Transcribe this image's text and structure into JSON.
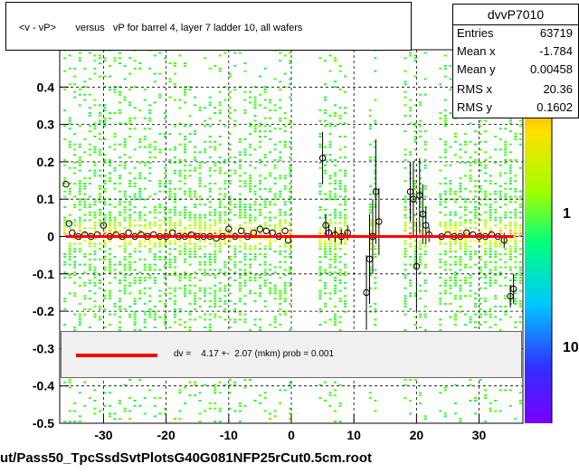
{
  "title": "<v - vP>       versus   vP for barrel 4, layer 7 ladder 10, all wafers",
  "stats": {
    "name": "dvvP7010",
    "rows": [
      {
        "label": "Entries",
        "value": "63719"
      },
      {
        "label": "Mean x",
        "value": "-1.784"
      },
      {
        "label": "Mean y",
        "value": "0.00458"
      },
      {
        "label": "RMS x",
        "value": "20.36"
      },
      {
        "label": "RMS y",
        "value": "0.1602"
      }
    ]
  },
  "legend": {
    "text": "dv =    4.17 +-  2.07 (mkm) prob = 0.001"
  },
  "footer": {
    "filename": "ut/Pass50_TpcSsdSvtPlotsG40G081NFP25rCut0.5cm.root"
  },
  "colors": {
    "fit_line": "#ff0000",
    "markers": "#000000",
    "grid": "#000000"
  },
  "chart_data": {
    "type": "scatter",
    "subtype": "2D histogram (colz) with profile overlay and linear fit",
    "xlim": [
      -37,
      37
    ],
    "ylim": [
      -0.5,
      0.5
    ],
    "y_tick_labels": [
      "-0.5",
      "-0.4",
      "-0.3",
      "-0.2",
      "-0.1",
      "0",
      "0.1",
      "0.2",
      "0.3",
      "0.4"
    ],
    "x_tick_labels": [
      "-30",
      "-20",
      "-10",
      "0",
      "10",
      "20",
      "30"
    ],
    "x_ticks": [
      -30,
      -20,
      -10,
      0,
      10,
      20,
      30
    ],
    "y_ticks": [
      -0.5,
      -0.4,
      -0.3,
      -0.2,
      -0.1,
      0,
      0.1,
      0.2,
      0.3,
      0.4
    ],
    "grid": true,
    "zscale": "log",
    "z_tick_labels": [
      "10",
      "1"
    ],
    "z_ticks": [
      10,
      1
    ],
    "fit_line": {
      "y": 0.0
    },
    "empty_x_ranges": [
      [
        0,
        4
      ],
      [
        9,
        12
      ],
      [
        14,
        18
      ],
      [
        22,
        23
      ]
    ],
    "profile": {
      "x": [
        -36,
        -35.5,
        -35,
        -34,
        -33,
        -32,
        -31,
        -30,
        -29,
        -28,
        -27,
        -26,
        -25,
        -24,
        -23,
        -22,
        -21,
        -20,
        -19,
        -18,
        -17,
        -16,
        -15,
        -14,
        -13,
        -12,
        -11,
        -10,
        -9,
        -8,
        -7,
        -6,
        -5,
        -4,
        -3,
        -2,
        -1,
        -0.5,
        5,
        5.5,
        6,
        7,
        8,
        9,
        12,
        12.5,
        13,
        13.5,
        14,
        19,
        19.5,
        20,
        20.5,
        21,
        21.5,
        22,
        24,
        25,
        26,
        27,
        28,
        29,
        30,
        31,
        32,
        33,
        34,
        35,
        35.5
      ],
      "y": [
        0.14,
        0.035,
        0.01,
        0.0,
        0.005,
        0.0,
        0.005,
        0.03,
        0.0,
        0.005,
        0.0,
        0.01,
        0.0,
        0.005,
        0.0,
        0.005,
        0.0,
        0.0,
        0.01,
        0.0,
        0.0,
        0.005,
        0.0,
        0.0,
        0.0,
        -0.005,
        0.0,
        0.02,
        0.0,
        0.015,
        0.0,
        0.01,
        0.02,
        0.015,
        0.01,
        0.0,
        0.015,
        -0.01,
        0.21,
        0.03,
        0.01,
        0.005,
        0.0,
        0.01,
        -0.15,
        -0.06,
        0.0,
        0.12,
        0.04,
        0.12,
        0.1,
        -0.08,
        0.11,
        0.06,
        0.03,
        0.005,
        0.0,
        0.005,
        0.0,
        0.0,
        0.01,
        0.005,
        0.0,
        0.0,
        0.005,
        0.0,
        -0.01,
        -0.16,
        -0.14
      ],
      "yerr": [
        0.01,
        0.01,
        0.01,
        0.01,
        0.01,
        0.01,
        0.01,
        0.01,
        0.01,
        0.01,
        0.01,
        0.01,
        0.01,
        0.01,
        0.01,
        0.01,
        0.01,
        0.01,
        0.01,
        0.01,
        0.01,
        0.01,
        0.01,
        0.01,
        0.01,
        0.01,
        0.01,
        0.01,
        0.01,
        0.01,
        0.01,
        0.01,
        0.01,
        0.01,
        0.01,
        0.01,
        0.01,
        0.01,
        0.07,
        0.03,
        0.02,
        0.02,
        0.02,
        0.02,
        0.1,
        0.12,
        0.1,
        0.14,
        0.09,
        0.08,
        0.1,
        0.12,
        0.1,
        0.08,
        0.05,
        0.02,
        0.01,
        0.01,
        0.01,
        0.01,
        0.01,
        0.01,
        0.01,
        0.01,
        0.01,
        0.01,
        0.02,
        0.03,
        0.04
      ]
    }
  }
}
